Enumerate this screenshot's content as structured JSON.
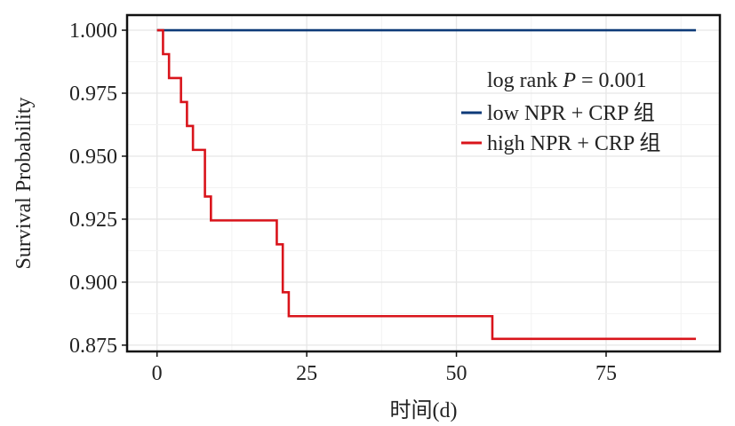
{
  "chart_data": {
    "type": "line",
    "subtype": "step",
    "title": "",
    "xlabel": "时间(d)",
    "ylabel": "Survival Probability",
    "xlim": [
      -5,
      94
    ],
    "ylim": [
      0.8725,
      1.006
    ],
    "xticks": [
      0,
      25,
      50,
      75
    ],
    "xtick_labels": [
      "0",
      "25",
      "50",
      "75"
    ],
    "yticks": [
      0.875,
      0.9,
      0.925,
      0.95,
      0.975,
      1.0
    ],
    "ytick_labels": [
      "0.875",
      "0.900",
      "0.925",
      "0.950",
      "0.975",
      "1.000"
    ],
    "grid": true,
    "legend_position": "upper-right",
    "annotation": {
      "prefix": "log rank ",
      "italic": "P",
      "suffix": " = 0.001"
    },
    "series": [
      {
        "name": "low NPR + CRP 组",
        "color": "#0d3a78",
        "x": [
          0,
          90
        ],
        "y": [
          1.0,
          1.0
        ]
      },
      {
        "name": "high NPR + CRP 组",
        "color": "#d9141b",
        "x": [
          0,
          1,
          2,
          4,
          5,
          6,
          8,
          9,
          20,
          21,
          22,
          56,
          90
        ],
        "y": [
          1.0,
          0.9905,
          0.981,
          0.9715,
          0.962,
          0.9525,
          0.934,
          0.9245,
          0.915,
          0.896,
          0.8865,
          0.8775,
          0.8775
        ]
      }
    ]
  }
}
